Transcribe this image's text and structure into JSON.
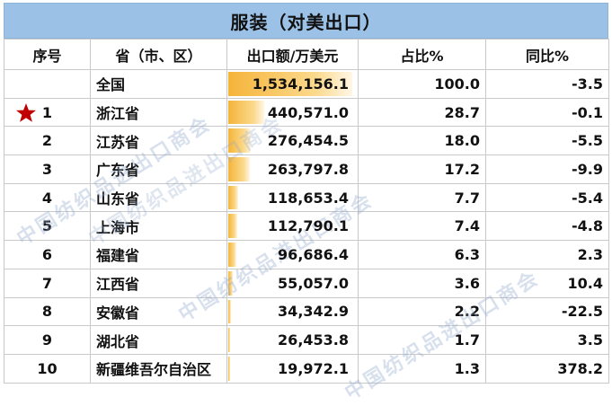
{
  "title": "服装（对美出口）",
  "headers": [
    "序号",
    "省（市、区）",
    "出口额/万美元",
    "占比%",
    "同比%"
  ],
  "bar_color": "#f5b43a",
  "header_color": "#9bc2e6",
  "rows": [
    {
      "rank": "",
      "province": "全国",
      "export": "1,534,156.1",
      "share": "100.0",
      "yoy": "-3.5",
      "ratio": 1.0
    },
    {
      "rank": "1",
      "province": "浙江省",
      "export": "440,571.0",
      "share": "28.7",
      "yoy": "-0.1",
      "ratio": 0.287,
      "star": true
    },
    {
      "rank": "2",
      "province": "江苏省",
      "export": "276,454.5",
      "share": "18.0",
      "yoy": "-5.5",
      "ratio": 0.18
    },
    {
      "rank": "3",
      "province": "广东省",
      "export": "263,797.8",
      "share": "17.2",
      "yoy": "-9.9",
      "ratio": 0.172
    },
    {
      "rank": "4",
      "province": "山东省",
      "export": "118,653.4",
      "share": "7.7",
      "yoy": "-5.4",
      "ratio": 0.077
    },
    {
      "rank": "5",
      "province": "上海市",
      "export": "112,790.1",
      "share": "7.4",
      "yoy": "-4.8",
      "ratio": 0.074
    },
    {
      "rank": "6",
      "province": "福建省",
      "export": "96,686.4",
      "share": "6.3",
      "yoy": "2.3",
      "ratio": 0.063
    },
    {
      "rank": "7",
      "province": "江西省",
      "export": "55,057.0",
      "share": "3.6",
      "yoy": "10.4",
      "ratio": 0.036
    },
    {
      "rank": "8",
      "province": "安徽省",
      "export": "34,342.9",
      "share": "2.2",
      "yoy": "-22.5",
      "ratio": 0.022
    },
    {
      "rank": "9",
      "province": "湖北省",
      "export": "26,453.8",
      "share": "1.7",
      "yoy": "3.5",
      "ratio": 0.017
    },
    {
      "rank": "10",
      "province": "新疆维吾尔自治区",
      "export": "19,972.1",
      "share": "1.3",
      "yoy": "378.2",
      "ratio": 0.013
    }
  ],
  "watermark": "中国纺织品进出口商会"
}
